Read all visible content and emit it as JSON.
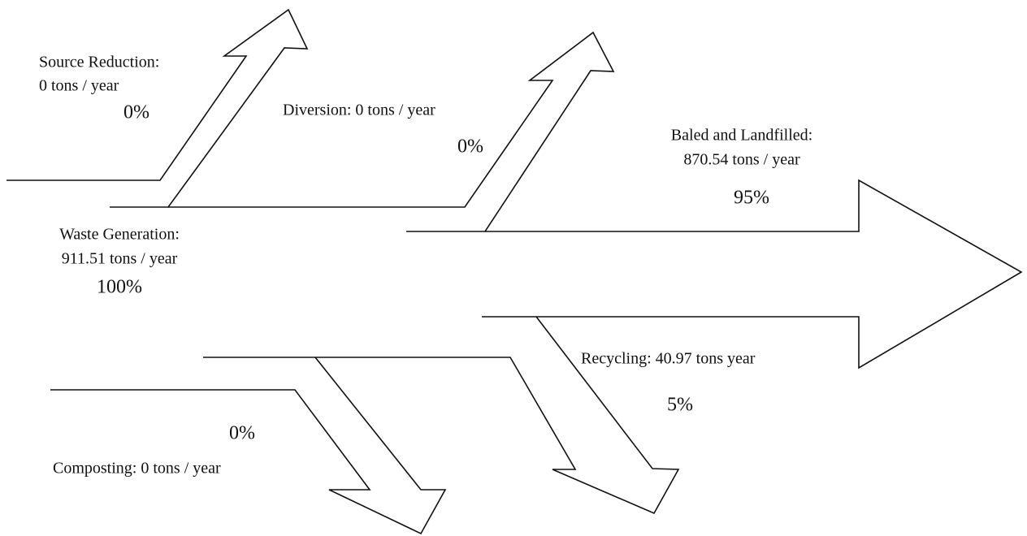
{
  "nodes": [
    {
      "label": [
        "Source Reduction:",
        "0 tons / year"
      ],
      "percent": "0%"
    },
    {
      "label": [
        "Diversion:  0 tons / year"
      ],
      "percent": "0%"
    },
    {
      "label": [
        "Baled and Landfilled:",
        "870.54 tons / year"
      ],
      "percent": "95%"
    },
    {
      "label": [
        "Waste Generation:",
        "911.51 tons / year"
      ],
      "percent": "100%"
    },
    {
      "label": [
        "Recycling:  40.97 tons  year"
      ],
      "percent": "5%"
    },
    {
      "label": [
        "Composting:  0 tons / year"
      ],
      "percent": "0%"
    }
  ]
}
